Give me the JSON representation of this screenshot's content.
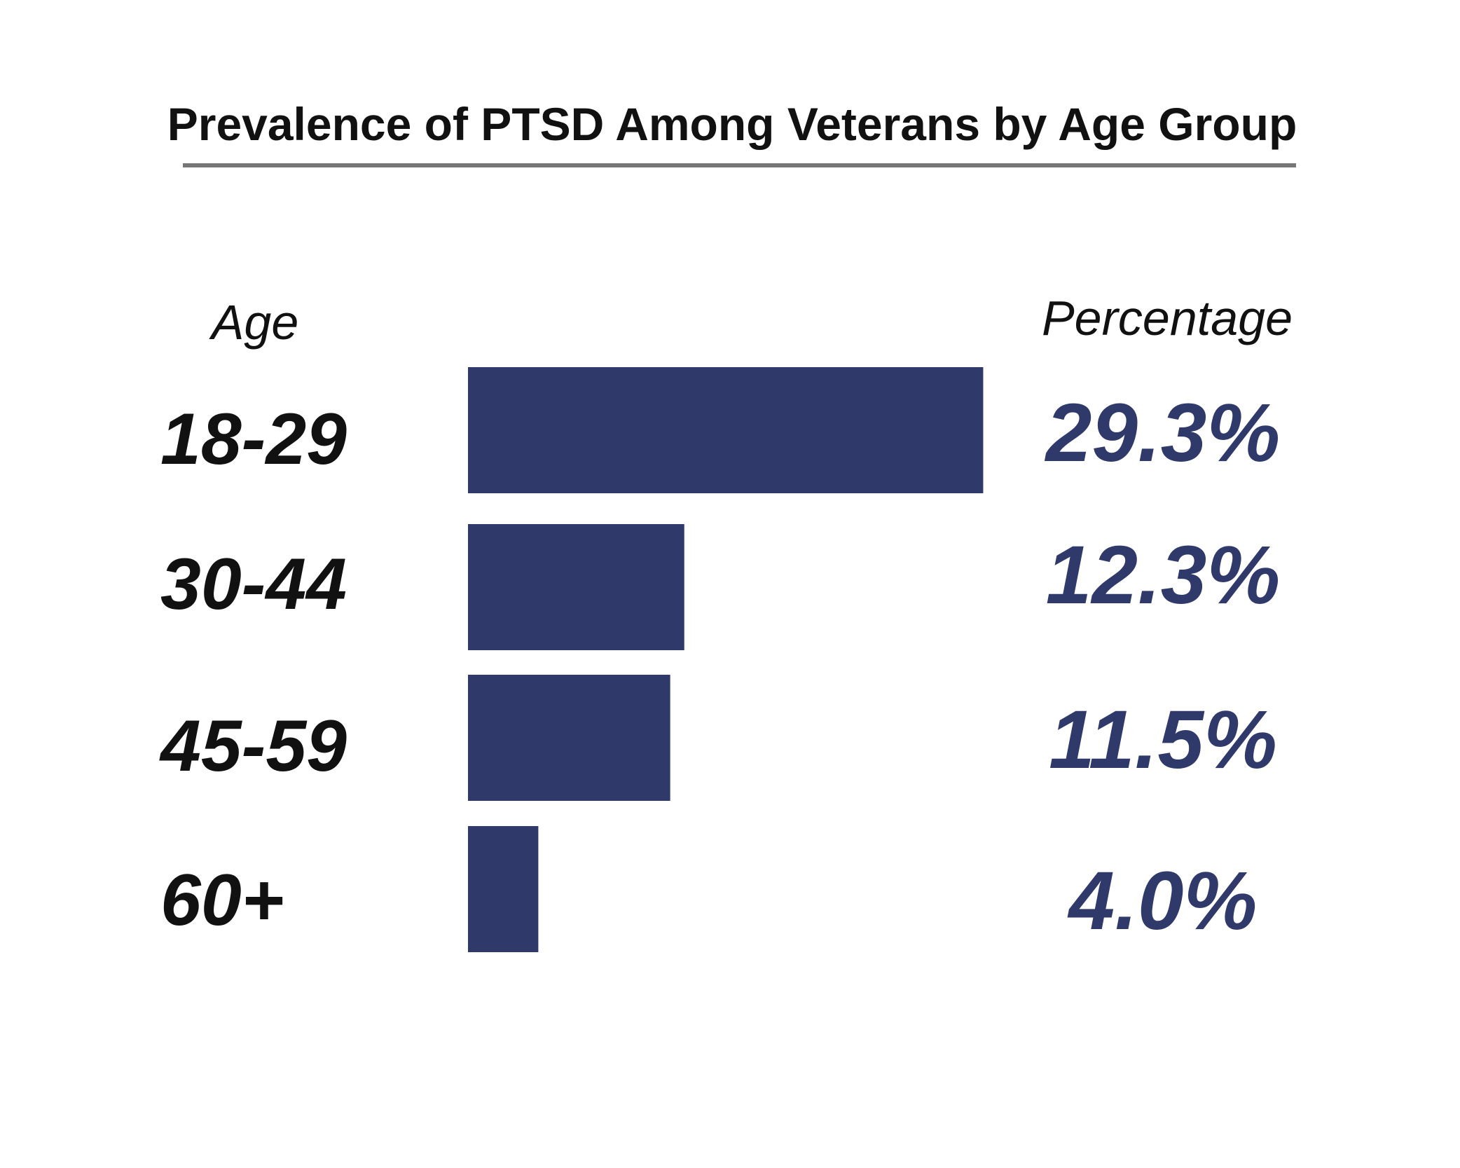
{
  "chart_data": {
    "type": "bar",
    "orientation": "horizontal",
    "title": "Prevalence of PTSD Among Veterans by Age Group",
    "category_header": "Age",
    "value_header": "Percentage",
    "categories": [
      "18-29",
      "30-44",
      "45-59",
      "60+"
    ],
    "values": [
      29.3,
      12.3,
      11.5,
      4.0
    ],
    "value_labels": [
      "29.3%",
      "12.3%",
      "11.5%",
      "4.0%"
    ],
    "unit": "%",
    "grid": false,
    "legend": "none",
    "colors": {
      "bar": "#303a6a",
      "value_text": "#303a6a",
      "title_underline": "#777777"
    }
  }
}
